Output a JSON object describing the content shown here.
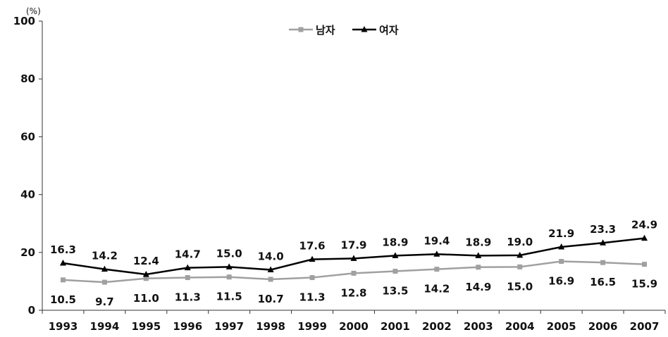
{
  "chart_data": {
    "type": "line",
    "unit_label": "(%)",
    "categories": [
      "1993",
      "1994",
      "1995",
      "1996",
      "1997",
      "1998",
      "1999",
      "2000",
      "2001",
      "2002",
      "2003",
      "2004",
      "2005",
      "2006",
      "2007"
    ],
    "ylim": [
      0,
      100
    ],
    "yticks": [
      0,
      20,
      40,
      60,
      80,
      100
    ],
    "legend_position": "top-center",
    "series": [
      {
        "name": "남자",
        "color": "#a0a0a0",
        "marker": "square",
        "values": [
          10.5,
          9.7,
          11.0,
          11.3,
          11.5,
          10.7,
          11.3,
          12.8,
          13.5,
          14.2,
          14.9,
          15.0,
          16.9,
          16.5,
          15.9
        ],
        "labels": [
          "10.5",
          "9.7",
          "11.0",
          "11.3",
          "11.5",
          "10.7",
          "11.3",
          "12.8",
          "13.5",
          "14.2",
          "14.9",
          "15.0",
          "16.9",
          "16.5",
          "15.9"
        ]
      },
      {
        "name": "여자",
        "color": "#000000",
        "marker": "triangle",
        "values": [
          16.3,
          14.2,
          12.4,
          14.7,
          15.0,
          14.0,
          17.6,
          17.9,
          18.9,
          19.4,
          18.9,
          19.0,
          21.9,
          23.3,
          24.9
        ],
        "labels": [
          "16.3",
          "14.2",
          "12.4",
          "14.7",
          "15.0",
          "14.0",
          "17.6",
          "17.9",
          "18.9",
          "19.4",
          "18.9",
          "19.0",
          "21.9",
          "23.3",
          "24.9"
        ]
      }
    ]
  }
}
